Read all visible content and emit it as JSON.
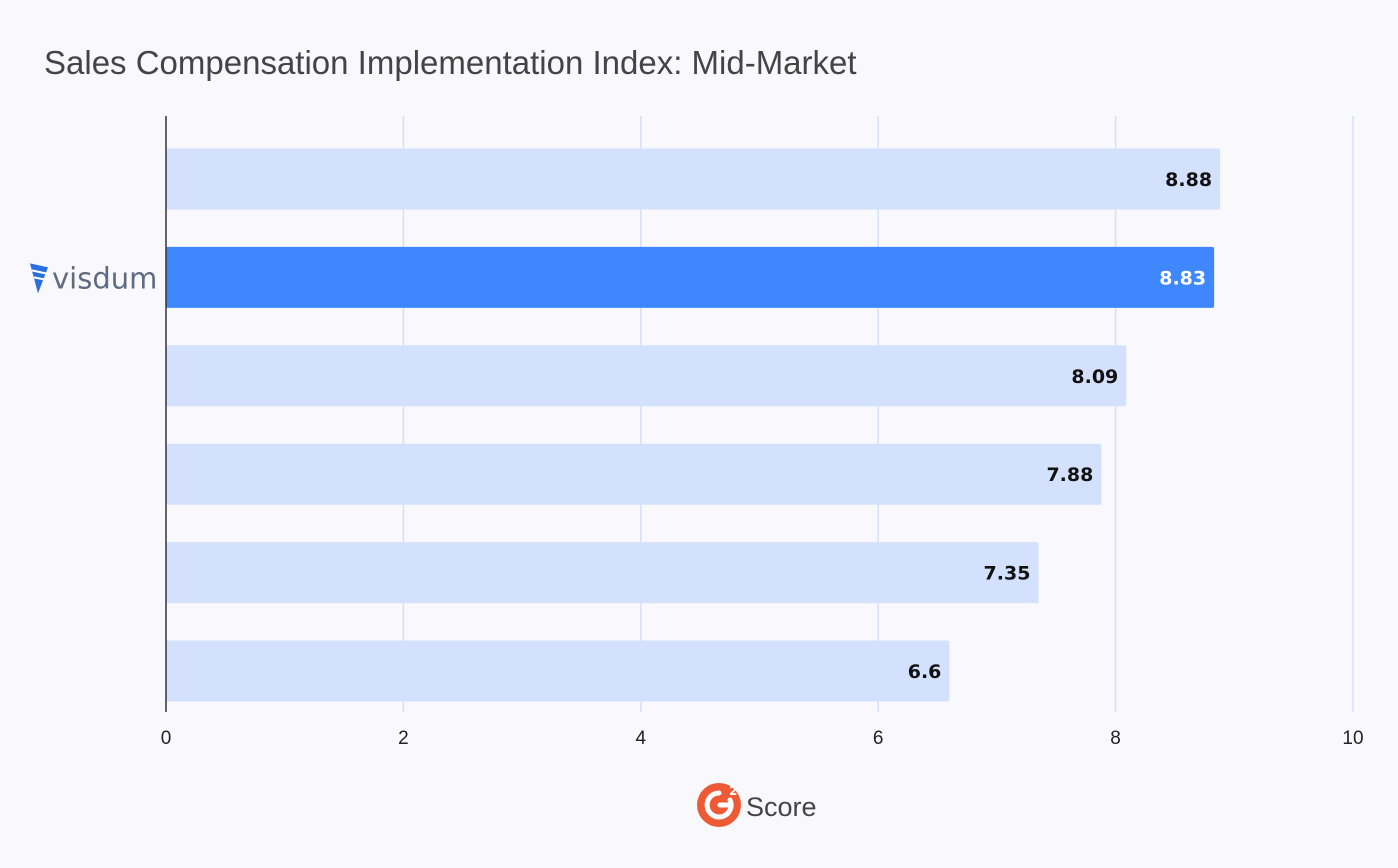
{
  "title": "Sales Compensation Implementation Index: Mid-Market",
  "footer": {
    "score_label": "Score",
    "badge_icon": "g2-logo-icon"
  },
  "chart_data": {
    "type": "bar",
    "orientation": "horizontal",
    "title": "Sales Compensation Implementation Index: Mid-Market",
    "xlabel": "",
    "ylabel": "",
    "xlim": [
      0,
      10
    ],
    "x_ticks": [
      "0",
      "2",
      "4",
      "6",
      "8",
      "10"
    ],
    "categories": [
      "",
      "visdum",
      "",
      "",
      "",
      ""
    ],
    "values": [
      8.88,
      8.83,
      8.09,
      7.88,
      7.35,
      6.6
    ],
    "value_labels": [
      "8.88",
      "8.83",
      "8.09",
      "7.88",
      "7.35",
      "6.6"
    ],
    "highlight_index": 1,
    "grid": true,
    "legend": "none",
    "colors": {
      "bar": "#d3e1ff",
      "highlight_bar": "#3f87ff",
      "label": "#111111",
      "highlight_label": "#ffffff",
      "grid": "#d6e0f5",
      "axis": "#333333",
      "logo": "#2a6fe0"
    }
  }
}
